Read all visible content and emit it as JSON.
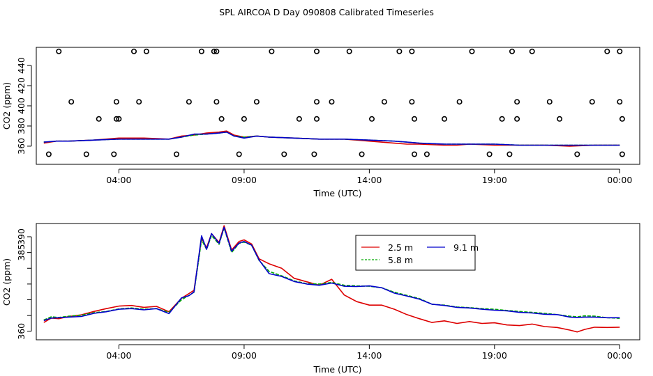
{
  "title": "SPL AIRCOA D  Day 090808  Calibrated Timeseries",
  "colors": {
    "s25": "#dd0000",
    "s58": "#00aa00",
    "s91": "#0000cc",
    "axis": "#000000"
  },
  "chart_data": [
    {
      "type": "line",
      "panel": "top",
      "xlabel": "Time (UTC)",
      "ylabel": "CO2 (ppm)",
      "xlim": [
        0.7,
        24.8
      ],
      "ylim": [
        342,
        458
      ],
      "x_ticks": [
        4,
        9,
        14,
        19,
        24
      ],
      "x_tick_labels": [
        "04:00",
        "09:00",
        "14:00",
        "19:00",
        "00:00"
      ],
      "y_ticks": [
        360,
        380,
        400,
        420,
        440
      ],
      "y_tick_labels": [
        "360",
        "380",
        "400",
        "420",
        "440"
      ],
      "series": [
        {
          "name": "2.5 m",
          "color_key": "s25",
          "x": [
            1.0,
            1.5,
            2.0,
            3.0,
            4.0,
            5.0,
            6.0,
            6.5,
            7.0,
            7.5,
            8.0,
            8.3,
            8.6,
            9.0,
            9.5,
            10.0,
            11.0,
            12.0,
            13.0,
            14.0,
            15.0,
            15.5,
            16.0,
            17.0,
            17.5,
            18.0,
            19.0,
            20.0,
            21.0,
            22.0,
            23.0,
            24.0
          ],
          "values": [
            363,
            365,
            365,
            366,
            368,
            368,
            367,
            370,
            371,
            373,
            374,
            375,
            371,
            369,
            370,
            369,
            368,
            367,
            367,
            365,
            363,
            362,
            362,
            361,
            361,
            362,
            361,
            361,
            361,
            360,
            361,
            361
          ]
        },
        {
          "name": "5.8 m",
          "color_key": "s58",
          "x": [
            1.0,
            1.5,
            2.0,
            3.0,
            4.0,
            5.0,
            6.0,
            6.5,
            7.0,
            7.5,
            8.0,
            8.3,
            8.6,
            9.0,
            9.5,
            10.0,
            11.0,
            12.0,
            13.0,
            14.0,
            15.0,
            15.5,
            16.0,
            17.0,
            17.5,
            18.0,
            19.0,
            20.0,
            21.0,
            22.0,
            23.0,
            24.0
          ],
          "values": [
            364,
            365,
            365,
            366,
            367,
            367,
            367,
            369,
            371,
            372,
            373,
            374,
            370,
            369,
            370,
            369,
            368,
            367,
            367,
            366,
            365,
            364,
            363,
            362,
            362,
            362,
            362,
            361,
            361,
            361,
            361,
            361
          ]
        },
        {
          "name": "9.1 m",
          "color_key": "s91",
          "x": [
            1.0,
            1.5,
            2.0,
            3.0,
            4.0,
            5.0,
            6.0,
            6.5,
            7.0,
            7.5,
            8.0,
            8.3,
            8.6,
            9.0,
            9.5,
            10.0,
            11.0,
            12.0,
            13.0,
            14.0,
            15.0,
            15.5,
            16.0,
            17.0,
            17.5,
            18.0,
            19.0,
            20.0,
            21.0,
            22.0,
            23.0,
            24.0
          ],
          "values": [
            364,
            365,
            365,
            366,
            367,
            367,
            367,
            369,
            372,
            372,
            373,
            374,
            370,
            368,
            370,
            369,
            368,
            367,
            367,
            366,
            365,
            364,
            363,
            362,
            362,
            362,
            362,
            361,
            361,
            361,
            361,
            361
          ]
        }
      ],
      "points": {
        "marker": "open-circle",
        "x": [
          1.6,
          2.1,
          1.2,
          2.7,
          3.2,
          3.9,
          3.9,
          4.6,
          4.0,
          3.8,
          5.1,
          4.8,
          6.3,
          7.3,
          7.8,
          6.8,
          7.9,
          7.9,
          8.1,
          9.5,
          9.0,
          8.8,
          10.1,
          10.6,
          11.2,
          11.9,
          11.9,
          11.9,
          12.5,
          11.8,
          13.2,
          13.7,
          14.1,
          14.6,
          15.2,
          15.7,
          15.7,
          15.8,
          15.8,
          16.3,
          17.0,
          17.6,
          18.1,
          18.8,
          19.3,
          19.7,
          19.9,
          19.9,
          19.6,
          20.5,
          21.2,
          21.6,
          22.3,
          22.9,
          23.5,
          24.0,
          24.0,
          24.1,
          24.1
        ],
        "values": [
          454,
          404,
          352,
          352,
          387,
          387,
          404,
          454,
          387,
          352,
          454,
          404,
          352,
          454,
          454,
          404,
          454,
          404,
          387,
          404,
          387,
          352,
          454,
          352,
          387,
          454,
          404,
          387,
          404,
          352,
          454,
          352,
          387,
          404,
          454,
          454,
          404,
          387,
          352,
          352,
          387,
          404,
          454,
          352,
          387,
          454,
          404,
          387,
          352,
          454,
          404,
          387,
          352,
          404,
          454,
          454,
          404,
          387,
          352
        ]
      }
    },
    {
      "type": "line",
      "panel": "bottom",
      "xlabel": "Time (UTC)",
      "ylabel": "CO2 (ppm)",
      "xlim": [
        0.7,
        24.8
      ],
      "ylim": [
        357.3,
        394.2
      ],
      "x_ticks": [
        4,
        9,
        14,
        19,
        24
      ],
      "x_tick_labels": [
        "04:00",
        "09:00",
        "14:00",
        "19:00",
        "00:00"
      ],
      "y_ticks": [
        360,
        365,
        370,
        375,
        380,
        385,
        390
      ],
      "y_tick_labels": [
        "360",
        "",
        "",
        "",
        "",
        "385",
        "390"
      ],
      "legend": {
        "position": "top-center",
        "entries": [
          "2.5 m",
          "5.8 m",
          "9.1 m"
        ]
      },
      "series": [
        {
          "name": "2.5 m",
          "color_key": "s25",
          "x": [
            1.0,
            1.3,
            1.6,
            2.0,
            2.5,
            3.0,
            3.5,
            4.0,
            4.5,
            5.0,
            5.5,
            6.0,
            6.5,
            6.8,
            7.0,
            7.3,
            7.5,
            7.7,
            8.0,
            8.2,
            8.5,
            8.8,
            9.0,
            9.3,
            9.6,
            10.0,
            10.5,
            11.0,
            11.5,
            12.0,
            12.5,
            13.0,
            13.5,
            14.0,
            14.5,
            15.0,
            15.5,
            16.0,
            16.5,
            17.0,
            17.5,
            18.0,
            18.5,
            19.0,
            19.5,
            20.0,
            20.5,
            21.0,
            21.5,
            22.0,
            22.3,
            22.6,
            23.0,
            23.5,
            24.0
          ],
          "values": [
            362.8,
            364.2,
            364.0,
            364.7,
            365.2,
            366.3,
            367.2,
            368.0,
            368.2,
            367.6,
            367.9,
            366.2,
            370.5,
            372.0,
            373.0,
            389.5,
            386.5,
            391.0,
            388.2,
            393.5,
            385.8,
            388.5,
            389.0,
            387.7,
            383.0,
            381.4,
            380.0,
            376.8,
            375.7,
            374.6,
            376.5,
            371.5,
            369.4,
            368.3,
            368.3,
            367.0,
            365.3,
            364.0,
            362.8,
            363.3,
            362.5,
            363.1,
            362.5,
            362.7,
            362.0,
            361.8,
            362.3,
            361.5,
            361.2,
            360.4,
            359.8,
            360.6,
            361.3,
            361.2,
            361.3
          ]
        },
        {
          "name": "5.8 m",
          "color_key": "s58",
          "x": [
            1.0,
            1.3,
            1.6,
            2.0,
            2.5,
            3.0,
            3.5,
            4.0,
            4.5,
            5.0,
            5.5,
            6.0,
            6.5,
            6.8,
            7.0,
            7.3,
            7.5,
            7.7,
            8.0,
            8.2,
            8.5,
            8.8,
            9.0,
            9.3,
            9.6,
            10.0,
            10.5,
            11.0,
            11.5,
            12.0,
            12.5,
            13.0,
            13.5,
            14.0,
            14.5,
            15.0,
            15.5,
            16.0,
            16.5,
            17.0,
            17.5,
            18.0,
            18.5,
            19.0,
            19.5,
            20.0,
            20.5,
            21.0,
            21.5,
            22.0,
            22.3,
            22.6,
            23.0,
            23.5,
            24.0
          ],
          "values": [
            363.6,
            364.6,
            364.4,
            364.8,
            365.1,
            365.9,
            366.3,
            367.1,
            367.4,
            367.0,
            367.2,
            366.0,
            370.0,
            371.4,
            372.4,
            389.0,
            386.0,
            390.4,
            387.6,
            392.8,
            385.0,
            387.9,
            388.3,
            387.3,
            382.5,
            379.0,
            377.6,
            376.0,
            375.1,
            375.0,
            375.5,
            374.6,
            374.4,
            374.3,
            373.8,
            372.4,
            371.4,
            370.4,
            368.6,
            368.3,
            367.7,
            367.5,
            367.2,
            367.0,
            366.6,
            366.3,
            366.0,
            365.7,
            365.3,
            364.8,
            364.6,
            364.9,
            364.8,
            364.3,
            364.1
          ]
        },
        {
          "name": "9.1 m",
          "color_key": "s91",
          "x": [
            1.0,
            1.3,
            1.6,
            2.0,
            2.5,
            3.0,
            3.5,
            4.0,
            4.5,
            5.0,
            5.5,
            6.0,
            6.5,
            6.8,
            7.0,
            7.3,
            7.5,
            7.7,
            8.0,
            8.2,
            8.5,
            8.8,
            9.0,
            9.3,
            9.6,
            10.0,
            10.5,
            11.0,
            11.5,
            12.0,
            12.5,
            13.0,
            13.5,
            14.0,
            14.5,
            15.0,
            15.5,
            16.0,
            16.5,
            17.0,
            17.5,
            18.0,
            18.5,
            19.0,
            19.5,
            20.0,
            20.5,
            21.0,
            21.5,
            22.0,
            22.3,
            22.6,
            23.0,
            23.5,
            24.0
          ],
          "values": [
            363.4,
            364.2,
            364.3,
            364.5,
            364.7,
            365.7,
            366.2,
            367.0,
            367.2,
            366.8,
            367.2,
            365.6,
            370.6,
            371.3,
            372.5,
            390.3,
            386.0,
            391.0,
            387.9,
            393.0,
            385.4,
            388.0,
            388.5,
            387.3,
            382.6,
            378.3,
            377.4,
            375.8,
            375.0,
            374.6,
            375.3,
            374.3,
            374.2,
            374.4,
            373.8,
            372.1,
            371.2,
            370.2,
            368.6,
            368.2,
            367.6,
            367.4,
            367.0,
            366.7,
            366.5,
            366.0,
            365.8,
            365.4,
            365.3,
            364.5,
            364.4,
            364.5,
            364.5,
            364.3,
            364.3
          ]
        }
      ]
    }
  ]
}
